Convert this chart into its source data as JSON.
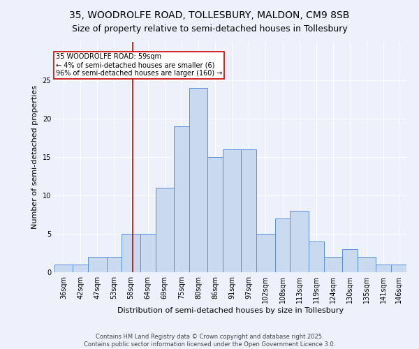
{
  "title1": "35, WOODROLFE ROAD, TOLLESBURY, MALDON, CM9 8SB",
  "title2": "Size of property relative to semi-detached houses in Tollesbury",
  "xlabel": "Distribution of semi-detached houses by size in Tollesbury",
  "ylabel": "Number of semi-detached properties",
  "bin_edges": [
    33.5,
    39.5,
    44.5,
    50.5,
    55.5,
    61.5,
    66.5,
    72.5,
    77.5,
    83.5,
    88.5,
    94.5,
    99.5,
    105.5,
    110.5,
    116.5,
    121.5,
    127.5,
    132.5,
    138.5,
    143.5,
    148.5
  ],
  "bar_heights": [
    1,
    1,
    2,
    2,
    5,
    5,
    11,
    19,
    24,
    15,
    16,
    16,
    5,
    7,
    8,
    4,
    2,
    3,
    2,
    1,
    1
  ],
  "tick_labels": [
    "36sqm",
    "42sqm",
    "47sqm",
    "53sqm",
    "58sqm",
    "64sqm",
    "69sqm",
    "75sqm",
    "80sqm",
    "86sqm",
    "91sqm",
    "97sqm",
    "102sqm",
    "108sqm",
    "113sqm",
    "119sqm",
    "124sqm",
    "130sqm",
    "135sqm",
    "141sqm",
    "146sqm"
  ],
  "bar_facecolor": "#c9daf0",
  "bar_edgecolor": "#5b8dd9",
  "property_line_x": 59,
  "property_line_color": "#cc0000",
  "annotation_text": "35 WOODROLFE ROAD: 59sqm\n← 4% of semi-detached houses are smaller (6)\n96% of semi-detached houses are larger (160) →",
  "annotation_box_edgecolor": "#cc0000",
  "annotation_box_facecolor": "white",
  "footer1": "Contains HM Land Registry data © Crown copyright and database right 2025.",
  "footer2": "Contains public sector information licensed under the Open Government Licence 3.0.",
  "ylim": [
    0,
    30
  ],
  "background_color": "#edf1fb",
  "grid_color": "white",
  "title_fontsize": 10,
  "subtitle_fontsize": 9,
  "axis_label_fontsize": 8,
  "tick_fontsize": 7,
  "footer_fontsize": 6
}
